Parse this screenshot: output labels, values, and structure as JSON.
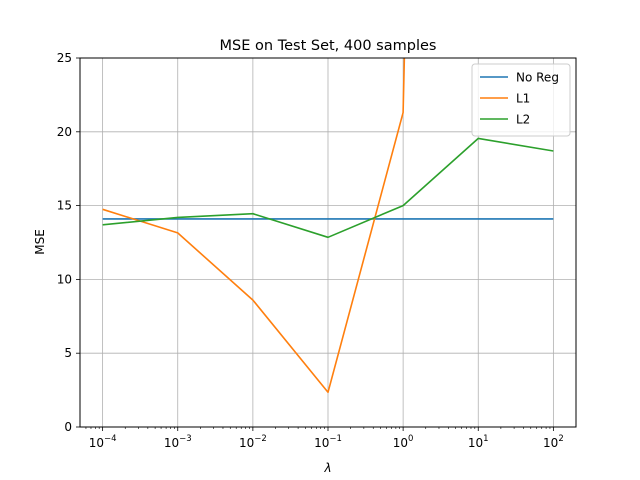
{
  "chart_data": {
    "type": "line",
    "title": "MSE on Test Set, 400 samples",
    "xlabel": "λ",
    "ylabel": "MSE",
    "xscale": "log",
    "xlim": [
      5e-05,
      200
    ],
    "ylim": [
      0,
      25
    ],
    "grid": true,
    "legend_position": "top-right",
    "x": [
      0.0001,
      0.001,
      0.01,
      0.1,
      1,
      10,
      100
    ],
    "x_tick_labels": [
      {
        "base": "10",
        "exp": "−4"
      },
      {
        "base": "10",
        "exp": "−3"
      },
      {
        "base": "10",
        "exp": "−2"
      },
      {
        "base": "10",
        "exp": "−1"
      },
      {
        "base": "10",
        "exp": "0"
      },
      {
        "base": "10",
        "exp": "1"
      },
      {
        "base": "10",
        "exp": "2"
      }
    ],
    "y_ticks": [
      0,
      5,
      10,
      15,
      20,
      25
    ],
    "y_tick_labels": [
      "0",
      "5",
      "10",
      "15",
      "20",
      "25"
    ],
    "series": [
      {
        "name": "No Reg",
        "color": "#1f77b4",
        "x": [
          0.0001,
          0.001,
          0.01,
          0.1,
          1,
          10,
          100
        ],
        "values": [
          14.1,
          14.1,
          14.1,
          14.1,
          14.1,
          14.1,
          14.1
        ]
      },
      {
        "name": "L1",
        "color": "#ff7f0e",
        "x": [
          0.0001,
          0.001,
          0.01,
          0.1,
          1,
          1.05
        ],
        "values": [
          14.75,
          13.15,
          8.6,
          2.35,
          21.3,
          26.0
        ]
      },
      {
        "name": "L2",
        "color": "#2ca02c",
        "x": [
          0.0001,
          0.001,
          0.01,
          0.1,
          1,
          10,
          100
        ],
        "values": [
          13.7,
          14.2,
          14.45,
          12.85,
          15.0,
          19.55,
          18.7
        ]
      }
    ]
  }
}
